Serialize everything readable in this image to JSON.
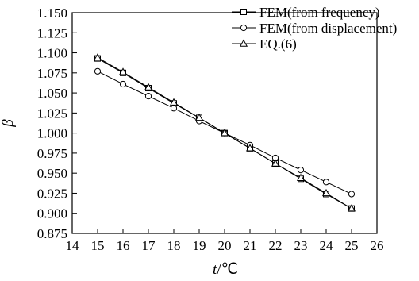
{
  "chart_data": {
    "type": "line",
    "xlabel_italic": "t",
    "xlabel_unit": "/℃",
    "ylabel": "β",
    "xlim": [
      14,
      26
    ],
    "ylim": [
      0.875,
      1.15
    ],
    "x_ticks": [
      14,
      15,
      16,
      17,
      18,
      19,
      20,
      21,
      22,
      23,
      24,
      25,
      26
    ],
    "y_ticks": [
      "0.875",
      "0.900",
      "0.925",
      "0.950",
      "0.975",
      "1.000",
      "1.025",
      "1.050",
      "1.075",
      "1.100",
      "1.125",
      "1.150"
    ],
    "grid": false,
    "legend_position": "top-right",
    "x": [
      15,
      16,
      17,
      18,
      19,
      20,
      21,
      22,
      23,
      24,
      25
    ],
    "series": [
      {
        "name": "FEM(from frequency)",
        "marker": "square",
        "values": [
          1.093,
          1.075,
          1.056,
          1.037,
          1.019,
          1.0,
          0.981,
          0.962,
          0.943,
          0.924,
          0.906
        ]
      },
      {
        "name": "FEM(from displacement)",
        "marker": "circle",
        "values": [
          1.077,
          1.061,
          1.046,
          1.031,
          1.015,
          1.0,
          0.985,
          0.969,
          0.954,
          0.939,
          0.924
        ]
      },
      {
        "name": "EQ.(6)",
        "marker": "triangle",
        "values": [
          1.094,
          1.076,
          1.057,
          1.038,
          1.019,
          1.0,
          0.981,
          0.962,
          0.944,
          0.925,
          0.906
        ]
      }
    ]
  }
}
